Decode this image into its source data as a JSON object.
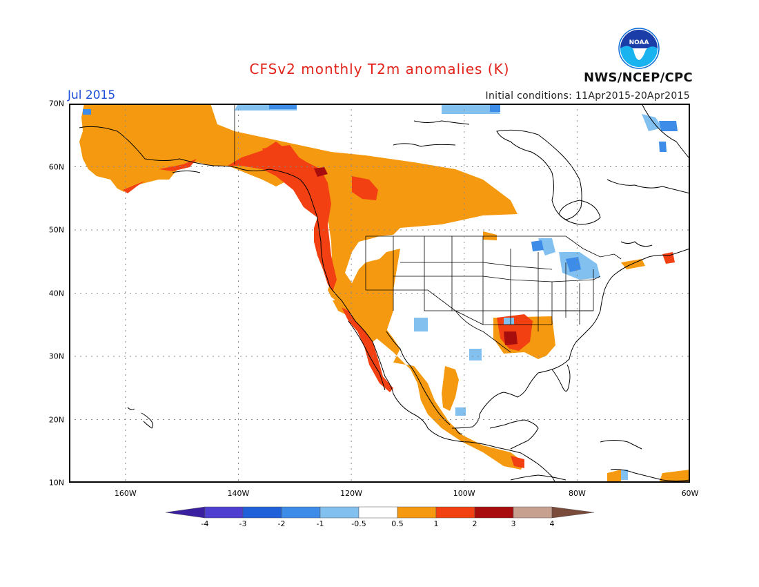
{
  "title": "CFSv2 monthly T2m anomalies (K)",
  "period": "Jul 2015",
  "initial_conditions": "Initial conditions: 11Apr2015-20Apr2015",
  "agency": "NWS/NCEP/CPC",
  "logo_text": "NOAA",
  "map": {
    "projection": "lat-lon",
    "lon_range": [
      -171,
      -60
    ],
    "lat_range": [
      10,
      70
    ],
    "grid": "dotted",
    "lat_ticks": [
      "70N",
      "60N",
      "50N",
      "40N",
      "30N",
      "20N",
      "10N"
    ],
    "lon_ticks": [
      "160W",
      "140W",
      "120W",
      "100W",
      "80W",
      "60W"
    ]
  },
  "colorbar": {
    "labels": [
      "-4",
      "-3",
      "-2",
      "-1",
      "-0.5",
      "0.5",
      "1",
      "2",
      "3",
      "4"
    ],
    "colors": [
      "#3a1fa0",
      "#4f3fd0",
      "#2060d8",
      "#3c8ce8",
      "#82c0f0",
      "#ffffff",
      "#f59a10",
      "#f24012",
      "#a80d0d",
      "#c8a090",
      "#7a4a3a"
    ]
  },
  "anomaly_regions": [
    {
      "level": "0.5-1",
      "color": "#f59a10",
      "description": "Alaska interior and northwestern Canada"
    },
    {
      "level": "1-2",
      "color": "#f24012",
      "description": "Pacific Northwest coast and British Columbia"
    },
    {
      "level": "2-3",
      "color": "#a80d0d",
      "description": "Northern British Columbia"
    },
    {
      "level": "1-2",
      "color": "#f24012",
      "description": "California and Baja California coast"
    },
    {
      "level": "0.5-1",
      "color": "#f59a10",
      "description": "Mexico west coast"
    },
    {
      "level": "1-2",
      "color": "#f24012",
      "description": "Lower Mississippi valley"
    },
    {
      "level": "-1 to -0.5",
      "color": "#82c0f0",
      "description": "Great Lakes and New Mexico"
    }
  ]
}
